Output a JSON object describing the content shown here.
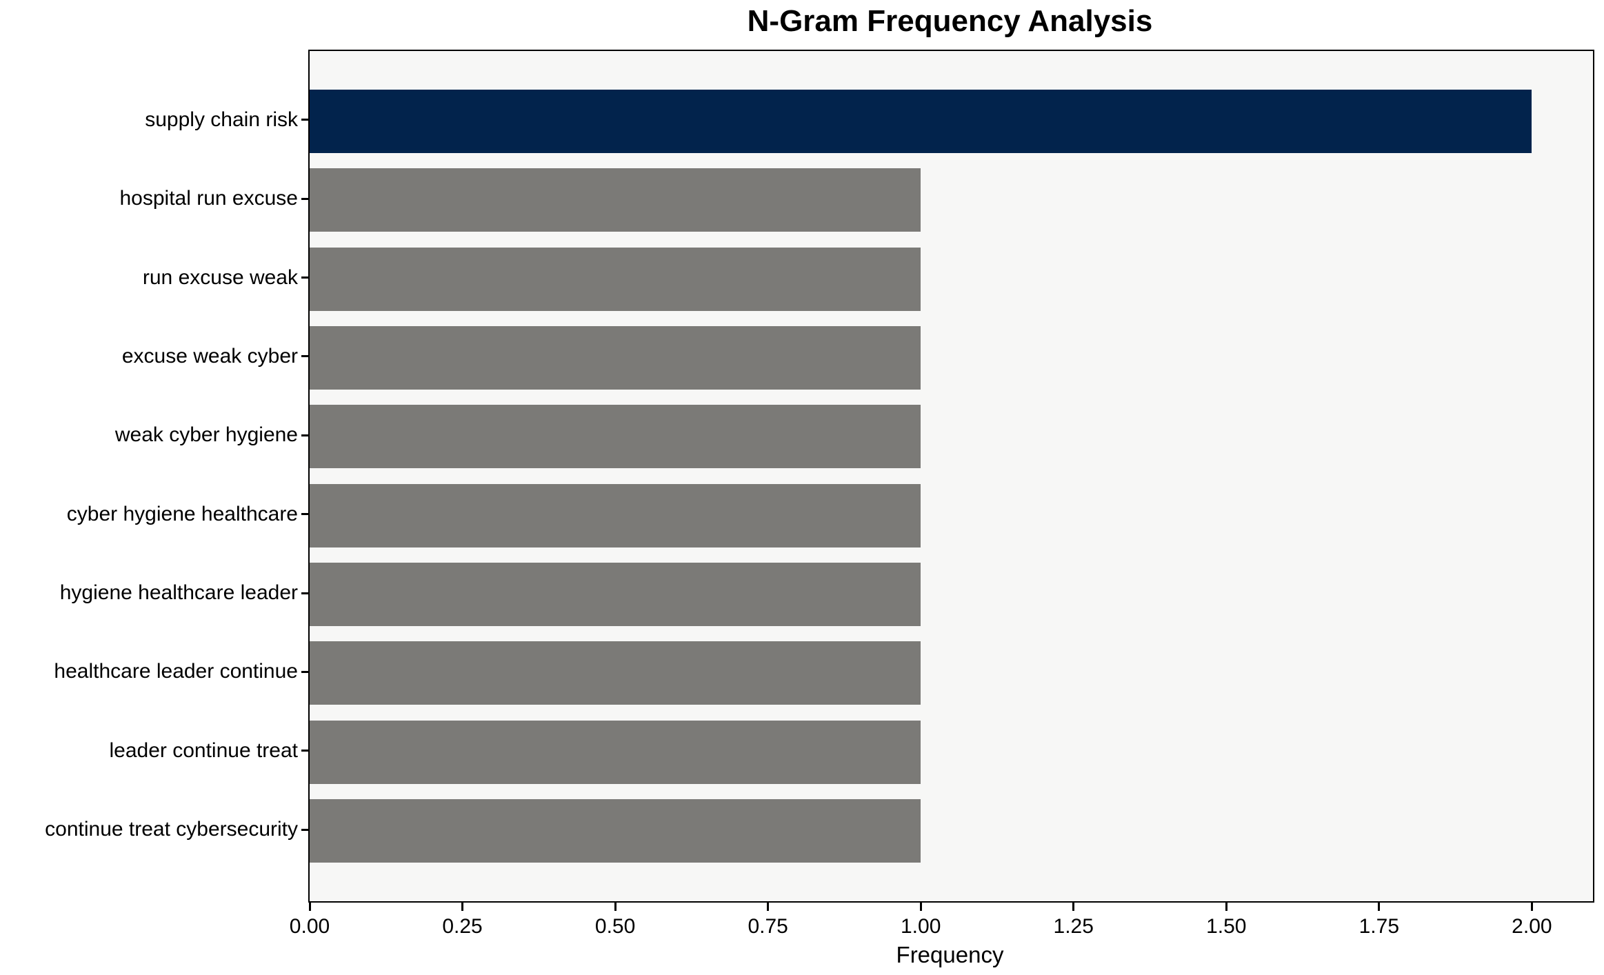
{
  "chart_data": {
    "type": "bar",
    "orientation": "horizontal",
    "title": "N-Gram Frequency Analysis",
    "xlabel": "Frequency",
    "ylabel": "",
    "categories": [
      "supply chain risk",
      "hospital run excuse",
      "run excuse weak",
      "excuse weak cyber",
      "weak cyber hygiene",
      "cyber hygiene healthcare",
      "hygiene healthcare leader",
      "healthcare leader continue",
      "leader continue treat",
      "continue treat cybersecurity"
    ],
    "values": [
      2,
      1,
      1,
      1,
      1,
      1,
      1,
      1,
      1,
      1
    ],
    "xlim": [
      0,
      2.1
    ],
    "xticks": [
      0,
      0.25,
      0.5,
      0.75,
      1,
      1.25,
      1.5,
      1.75,
      2
    ],
    "xtick_labels": [
      "0.00",
      "0.25",
      "0.50",
      "0.75",
      "1.00",
      "1.25",
      "1.50",
      "1.75",
      "2.00"
    ],
    "grid": false,
    "legend": null,
    "colors": {
      "highlight_bar": "#02234c",
      "default_bar": "#7b7a77",
      "plot_background": "#f7f7f6",
      "figure_background": "#ffffff",
      "spine": "#000000",
      "text": "#000000"
    },
    "bar_colors": [
      "#02234c",
      "#7b7a77",
      "#7b7a77",
      "#7b7a77",
      "#7b7a77",
      "#7b7a77",
      "#7b7a77",
      "#7b7a77",
      "#7b7a77",
      "#7b7a77"
    ]
  }
}
